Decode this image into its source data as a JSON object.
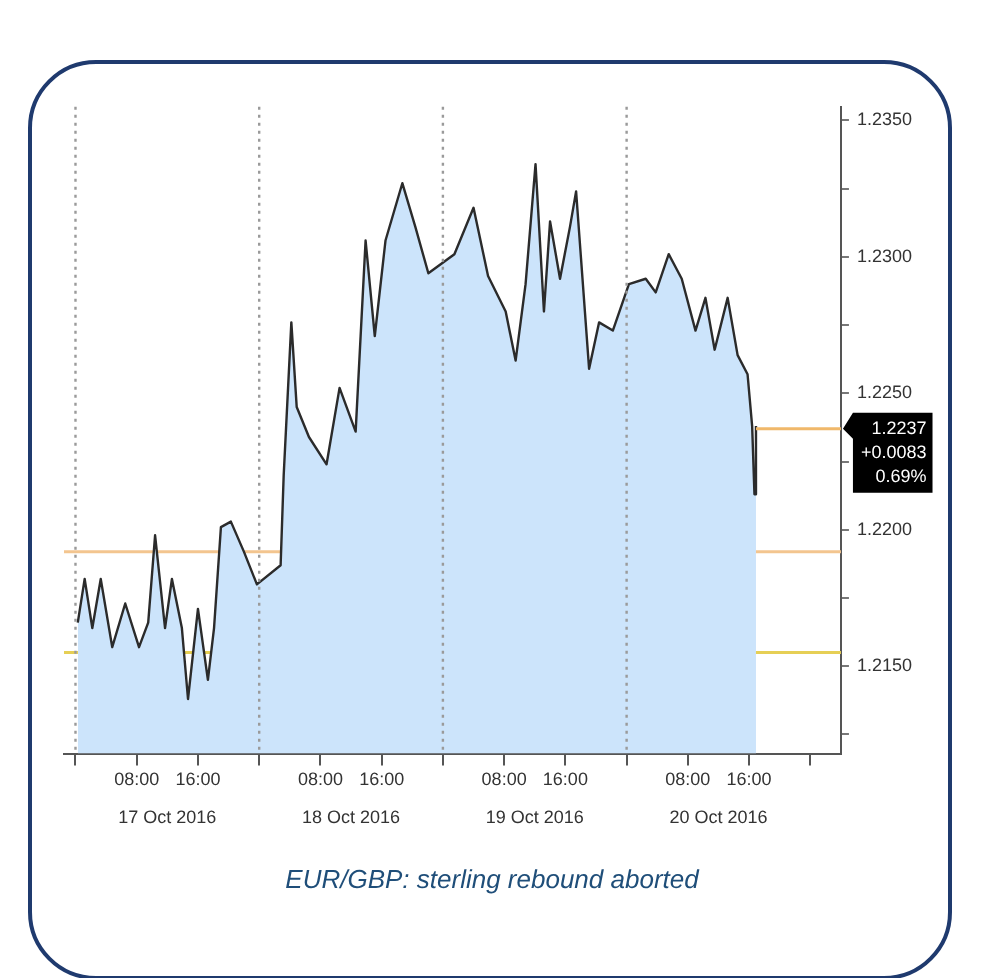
{
  "chart_data": {
    "type": "area",
    "title": "EUR/GBP: sterling rebound aborted",
    "x": [
      "2016-10-17T00:18",
      "2016-10-17T01:12",
      "2016-10-17T02:12",
      "2016-10-17T03:18",
      "2016-10-17T04:48",
      "2016-10-17T06:30",
      "2016-10-17T08:18",
      "2016-10-17T09:30",
      "2016-10-17T10:24",
      "2016-10-17T11:42",
      "2016-10-17T12:36",
      "2016-10-17T13:54",
      "2016-10-17T14:42",
      "2016-10-17T16:00",
      "2016-10-17T17:18",
      "2016-10-17T18:06",
      "2016-10-17T19:00",
      "2016-10-17T20:18",
      "2016-10-17T22:00",
      "2016-10-17T23:42",
      "2016-10-18T02:48",
      "2016-10-18T03:12",
      "2016-10-18T04:12",
      "2016-10-18T04:54",
      "2016-10-18T06:30",
      "2016-10-18T08:48",
      "2016-10-18T10:30",
      "2016-10-18T12:36",
      "2016-10-18T13:54",
      "2016-10-18T15:06",
      "2016-10-18T16:30",
      "2016-10-18T18:42",
      "2016-10-18T20:24",
      "2016-10-18T22:06",
      "2016-10-19T01:30",
      "2016-10-19T04:00",
      "2016-10-19T05:54",
      "2016-10-19T08:12",
      "2016-10-19T09:30",
      "2016-10-19T10:48",
      "2016-10-19T12:06",
      "2016-10-19T13:12",
      "2016-10-19T14:00",
      "2016-10-19T15:18",
      "2016-10-19T16:36",
      "2016-10-19T17:24",
      "2016-10-19T19:06",
      "2016-10-19T20:24",
      "2016-10-19T22:12",
      "2016-10-20T00:18",
      "2016-10-20T02:30",
      "2016-10-20T03:48",
      "2016-10-20T05:30",
      "2016-10-20T07:12",
      "2016-10-20T09:00",
      "2016-10-20T10:18",
      "2016-10-20T11:30",
      "2016-10-20T13:12",
      "2016-10-20T14:30",
      "2016-10-20T15:48",
      "2016-10-20T16:24",
      "2016-10-20T16:42",
      "2016-10-20T16:54"
    ],
    "series": [
      {
        "color": "#cce4fb",
        "values": [
          1.2166,
          1.2182,
          1.2164,
          1.2182,
          1.2157,
          1.2173,
          1.2157,
          1.2166,
          1.2198,
          1.2164,
          1.2182,
          1.2164,
          1.2138,
          1.2171,
          1.2145,
          1.2164,
          1.2201,
          1.2203,
          1.2192,
          1.218,
          1.2187,
          1.222,
          1.2276,
          1.2245,
          1.2234,
          1.2224,
          1.2252,
          1.2236,
          1.2306,
          1.2271,
          1.2306,
          1.2327,
          1.2311,
          1.2294,
          1.2301,
          1.2318,
          1.2293,
          1.228,
          1.2262,
          1.229,
          1.2334,
          1.228,
          1.2313,
          1.2292,
          1.2311,
          1.2324,
          1.2259,
          1.2276,
          1.2273,
          1.229,
          1.2292,
          1.2287,
          1.2301,
          1.2292,
          1.2273,
          1.2285,
          1.2266,
          1.2285,
          1.2264,
          1.2257,
          1.2238,
          1.2213,
          1.2238
        ]
      }
    ],
    "xlim": [
      "2016-10-16T22:30",
      "2016-10-21T04:00"
    ],
    "xticks": [
      {
        "value": "2016-10-17T00:00",
        "label": null
      },
      {
        "value": "2016-10-17T08:00",
        "label": "08:00"
      },
      {
        "value": "2016-10-17T16:00",
        "label": "16:00"
      },
      {
        "value": "2016-10-18T00:00",
        "label": null
      },
      {
        "value": "2016-10-18T08:00",
        "label": "08:00"
      },
      {
        "value": "2016-10-18T16:00",
        "label": "16:00"
      },
      {
        "value": "2016-10-19T00:00",
        "label": null
      },
      {
        "value": "2016-10-19T08:00",
        "label": "08:00"
      },
      {
        "value": "2016-10-19T16:00",
        "label": "16:00"
      },
      {
        "value": "2016-10-20T00:00",
        "label": null
      },
      {
        "value": "2016-10-20T08:00",
        "label": "08:00"
      },
      {
        "value": "2016-10-20T16:00",
        "label": "16:00"
      },
      {
        "value": "2016-10-21T00:00",
        "label": null
      }
    ],
    "x2lim": [
      "2016-10-16T22:30",
      "2016-10-21T04:00"
    ],
    "x2ticks": [
      {
        "value": "2016-10-17T12:00",
        "label": "17 Oct 2016"
      },
      {
        "value": "2016-10-18T12:00",
        "label": "18 Oct 2016"
      },
      {
        "value": "2016-10-19T12:00",
        "label": "19 Oct 2016"
      },
      {
        "value": "2016-10-20T12:00",
        "label": "20 Oct 2016"
      }
    ],
    "ylim": [
      1.2118,
      1.2355
    ],
    "yticks": [
      {
        "value": 1.2125,
        "label": null
      },
      {
        "value": 1.215,
        "label": "1.2150"
      },
      {
        "value": 1.2175,
        "label": null
      },
      {
        "value": 1.22,
        "label": "1.2200"
      },
      {
        "value": 1.2225,
        "label": null
      },
      {
        "value": 1.225,
        "label": "1.2250"
      },
      {
        "value": 1.2275,
        "label": null
      },
      {
        "value": 1.23,
        "label": "1.2300"
      },
      {
        "value": 1.2325,
        "label": null
      },
      {
        "value": 1.235,
        "label": "1.2350"
      }
    ],
    "ref_lines": [
      {
        "axis": "x",
        "value": "2016-10-17T00:00",
        "color": "#9a9a9a",
        "line_style": "dotted"
      },
      {
        "axis": "x",
        "value": "2016-10-18T00:00",
        "color": "#9a9a9a",
        "line_style": "dotted"
      },
      {
        "axis": "x",
        "value": "2016-10-19T00:00",
        "color": "#9a9a9a",
        "line_style": "dotted"
      },
      {
        "axis": "x",
        "value": "2016-10-20T00:00",
        "color": "#9a9a9a",
        "line_style": "dotted"
      },
      {
        "axis": "y",
        "value": 1.2192,
        "color": "#f3c58f"
      },
      {
        "axis": "y",
        "value": 1.2155,
        "color": "#e6cf55"
      },
      {
        "axis": "y",
        "value": 1.2237,
        "color": "#f0b86a",
        "label": "1.2237"
      }
    ],
    "annotations": [
      "+0.0083",
      "0.69%"
    ],
    "grid": false,
    "legend": false
  }
}
